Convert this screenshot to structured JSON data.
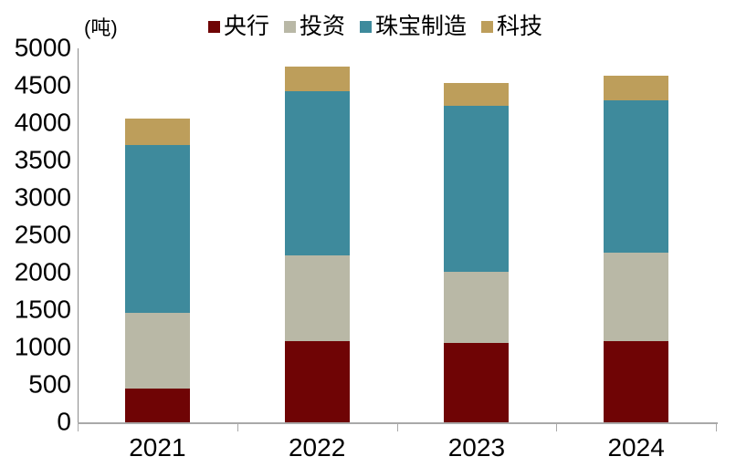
{
  "chart_data": {
    "type": "bar",
    "stacked": true,
    "title": "",
    "unit_label": "(吨)",
    "categories": [
      "2021",
      "2022",
      "2023",
      "2024"
    ],
    "series": [
      {
        "name": "央行",
        "color": "#6F0405",
        "values": [
          450,
          1080,
          1060,
          1090
        ]
      },
      {
        "name": "投资",
        "color": "#B9B8A6",
        "values": [
          1010,
          1150,
          950,
          1180
        ]
      },
      {
        "name": "珠宝制造",
        "color": "#3E8A9C",
        "values": [
          2250,
          2200,
          2220,
          2040
        ]
      },
      {
        "name": "科技",
        "color": "#BD9E5B",
        "values": [
          350,
          330,
          310,
          330
        ]
      }
    ],
    "ylim": [
      0,
      5000
    ],
    "ytick_step": 500,
    "yticks": [
      0,
      500,
      1000,
      1500,
      2000,
      2500,
      3000,
      3500,
      4000,
      4500,
      5000
    ],
    "grid": false,
    "legend_position": "top",
    "axis_color": "#A9A9A9",
    "text_color": "#000000"
  }
}
